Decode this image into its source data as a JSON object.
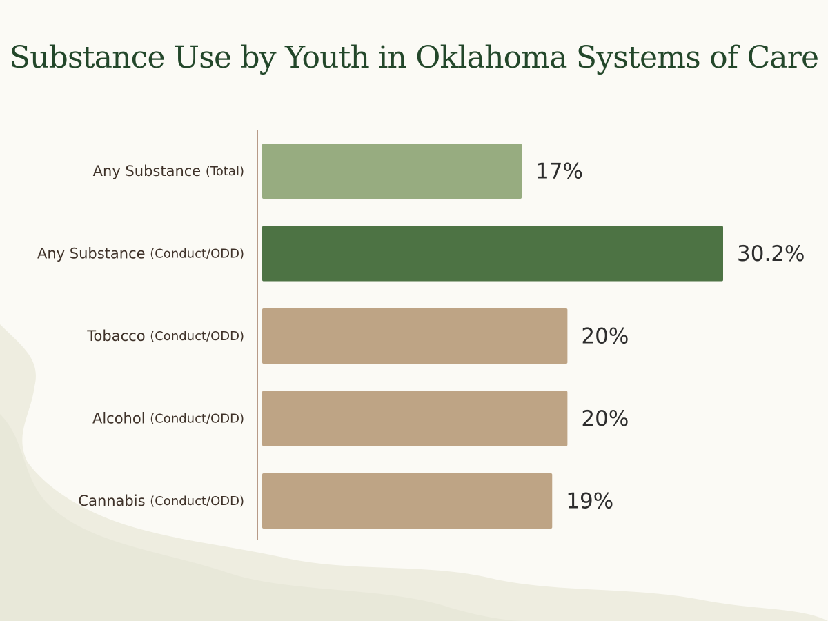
{
  "chart_data": {
    "type": "bar",
    "orientation": "horizontal",
    "title": "Substance Use by Youth in Oklahoma Systems of Care",
    "xlabel": "",
    "ylabel": "",
    "xlim": [
      0,
      30.2
    ],
    "grid": false,
    "categories": [
      {
        "main": "Any Substance",
        "sub": "(Total)"
      },
      {
        "main": "Any Substance",
        "sub": "(Conduct/ODD)"
      },
      {
        "main": "Tobacco",
        "sub": "(Conduct/ODD)"
      },
      {
        "main": "Alcohol",
        "sub": "(Conduct/ODD)"
      },
      {
        "main": "Cannabis",
        "sub": "(Conduct/ODD)"
      }
    ],
    "values": [
      17,
      30.2,
      20,
      20,
      19
    ],
    "value_labels": [
      "17%",
      "30.2%",
      "20%",
      "20%",
      "19%"
    ],
    "bar_colors": [
      "#97ac80",
      "#4d7344",
      "#bea485",
      "#bea485",
      "#bea485"
    ]
  },
  "colors": {
    "background": "#fbfaf5",
    "title": "#23472a",
    "axis": "#b79a88",
    "wash": "#eeede0"
  }
}
